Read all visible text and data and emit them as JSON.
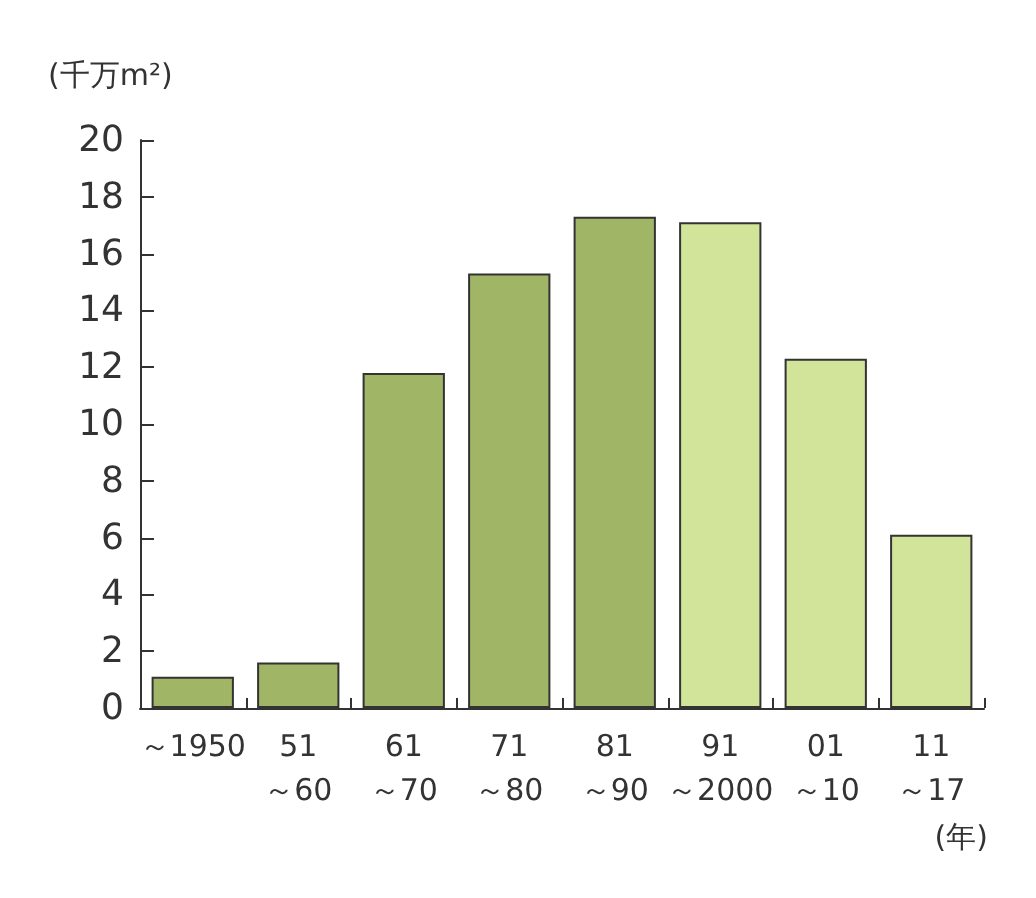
{
  "chart_data": {
    "type": "bar",
    "ylabel": "(千万m²)",
    "xlabel": "(年)",
    "categories": [
      "～1950",
      "51\n～60",
      "61\n～70",
      "71\n～80",
      "81\n～90",
      "91\n～2000",
      "01\n～10",
      "11\n～17"
    ],
    "values": [
      1.1,
      1.6,
      11.8,
      15.3,
      17.3,
      17.1,
      12.3,
      6.1
    ],
    "colors": [
      "#a0b566",
      "#a0b566",
      "#a0b566",
      "#a0b566",
      "#a0b566",
      "#d1e49a",
      "#d1e49a",
      "#d1e49a"
    ],
    "ylim": [
      0,
      20
    ],
    "yticks": [
      0,
      2,
      4,
      6,
      8,
      10,
      12,
      14,
      16,
      18,
      20
    ],
    "grid": false
  }
}
